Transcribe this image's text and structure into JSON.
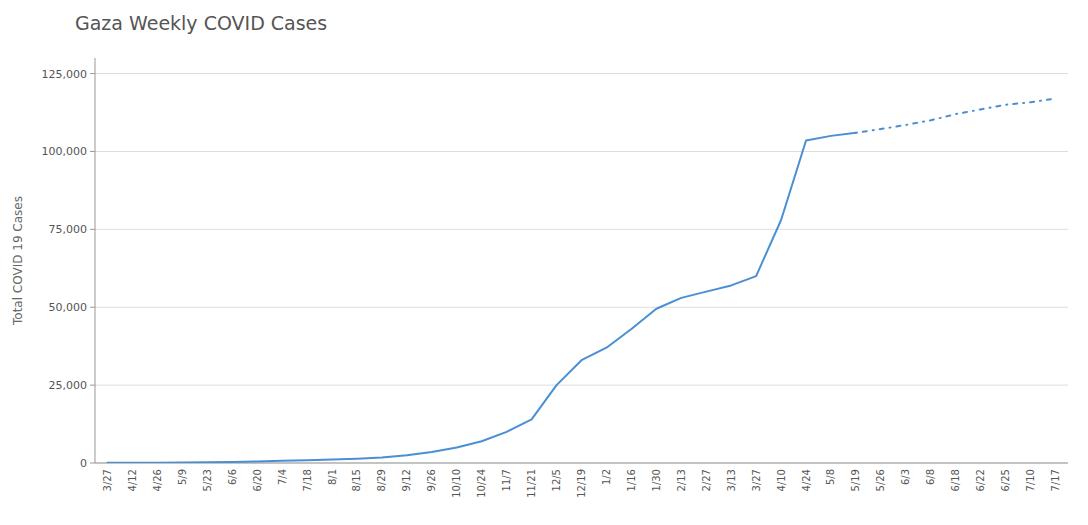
{
  "chart_data": {
    "type": "line",
    "title": "Gaza Weekly COVID Cases",
    "ylabel": "Total COVID 19 Cases",
    "categories": [
      "3/27",
      "4/12",
      "4/26",
      "5/9",
      "5/23",
      "6/6",
      "6/20",
      "7/4",
      "7/18",
      "8/1",
      "8/15",
      "8/29",
      "9/12",
      "9/26",
      "10/10",
      "10/24",
      "11/7",
      "11/21",
      "12/5",
      "12/19",
      "1/2",
      "1/16",
      "1/30",
      "2/13",
      "2/27",
      "3/13",
      "3/27",
      "4/10",
      "4/24",
      "5/8",
      "5/19",
      "5/26",
      "6/3",
      "6/8",
      "6/18",
      "6/22",
      "6/25",
      "7/10",
      "7/17"
    ],
    "series": [
      {
        "color": "#4a8fd4",
        "line_style": "solid",
        "values": [
          50,
          80,
          120,
          180,
          250,
          350,
          500,
          700,
          900,
          1100,
          1400,
          1800,
          2500,
          3500,
          5000,
          7000,
          10000,
          14000,
          25000,
          33000,
          37000,
          43000,
          49500,
          53000,
          55000,
          57000,
          60000,
          78000,
          103500,
          105000,
          106000,
          null,
          null,
          null,
          null,
          null,
          null,
          null,
          null
        ]
      },
      {
        "color": "#4a8fd4",
        "line_style": "dashdot",
        "values": [
          null,
          null,
          null,
          null,
          null,
          null,
          null,
          null,
          null,
          null,
          null,
          null,
          null,
          null,
          null,
          null,
          null,
          null,
          null,
          null,
          null,
          null,
          null,
          null,
          null,
          null,
          null,
          null,
          null,
          null,
          106000,
          107200,
          108500,
          110000,
          112000,
          113500,
          115000,
          115800,
          117000
        ]
      }
    ],
    "ylim": [
      0,
      130000
    ],
    "yticks": [
      0,
      {
        "value": 25000,
        "label": "25,000"
      },
      {
        "value": 50000,
        "label": "50,000"
      },
      {
        "value": 75000,
        "label": "75,000"
      },
      {
        "value": 100000,
        "label": "100,000"
      },
      {
        "value": 125000,
        "label": "125,000"
      }
    ],
    "grid": true
  }
}
